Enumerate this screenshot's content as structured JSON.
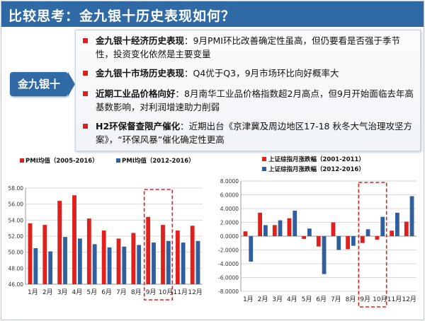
{
  "slide": {
    "title": "比较思考：金九银十历史表现如何？",
    "side_label": "金九银十"
  },
  "bullets": [
    {
      "head": "金九银十经济历史表现",
      "body": "：9月PMI环比改善确定性虽高，但仍要看是否强于季节性，投资变化依然是主要变量"
    },
    {
      "head": "金九银十市场历史表现",
      "body": "：Q4优于Q3，9月市场环比向好概率大"
    },
    {
      "head": "近期工业品价格向好",
      "body": "：8月南华工业品价格指数超2月高点，但9月开始面临去年高基数影响，对利润增速助力削弱"
    },
    {
      "head": "H2环保督查限产催化",
      "body": "：近期出台《京津冀及周边地区17-18 秋冬大气治理攻坚方案》，“环保风暴”催化确定性更高"
    }
  ],
  "colors": {
    "red": "#e0201c",
    "blue": "#2f5f9e",
    "title_bg": "#2f6aa6"
  },
  "chart_data": [
    {
      "type": "bar",
      "categories": [
        "1月",
        "2月",
        "3月",
        "4月",
        "5月",
        "6月",
        "7月",
        "8月",
        "9月",
        "10月",
        "11月",
        "12月"
      ],
      "series": [
        {
          "name": "PMI均值（2005-2016）",
          "values": [
            53.6,
            53.4,
            56.4,
            57.1,
            54.2,
            52.7,
            51.7,
            52.4,
            54.4,
            53.4,
            52.7,
            53.3
          ]
        },
        {
          "name": "PMI均值（2012-2016）",
          "values": [
            50.5,
            50.1,
            51.9,
            51.7,
            51.0,
            50.6,
            50.7,
            50.9,
            51.2,
            51.4,
            51.2,
            51.4
          ]
        }
      ],
      "ylim": [
        46,
        58
      ],
      "yticks": [
        "58.00",
        "56.00",
        "54.00",
        "52.00",
        "50.00",
        "48.00",
        "46.00"
      ],
      "highlight": [
        "9月",
        "10月"
      ]
    },
    {
      "type": "bar",
      "categories": [
        "1月",
        "2月",
        "3月",
        "4月",
        "5月",
        "6月",
        "7月",
        "8月",
        "9月",
        "10月",
        "11月",
        "12月"
      ],
      "series": [
        {
          "name": "上证综指月涨跌幅（2001-2011）",
          "values": [
            0.7,
            3.4,
            1.6,
            2.6,
            -0.4,
            -1.5,
            2.0,
            -1.9,
            -1.0,
            -0.5,
            0.8,
            2.1
          ]
        },
        {
          "name": "上证综指月涨跌幅（2012-2016）",
          "values": [
            -3.7,
            1.6,
            2.3,
            3.7,
            1.1,
            -5.5,
            -2.0,
            -1.4,
            1.0,
            2.8,
            3.4,
            5.8
          ]
        }
      ],
      "ylim": [
        -8,
        8
      ],
      "yticks": [
        "8.0000",
        "6.0000",
        "4.0000",
        "2.0000",
        "0.0000",
        "-2.0000",
        "-4.0000",
        "-6.0000",
        "-8.0000"
      ],
      "highlight": [
        "9月",
        "10月"
      ]
    }
  ]
}
